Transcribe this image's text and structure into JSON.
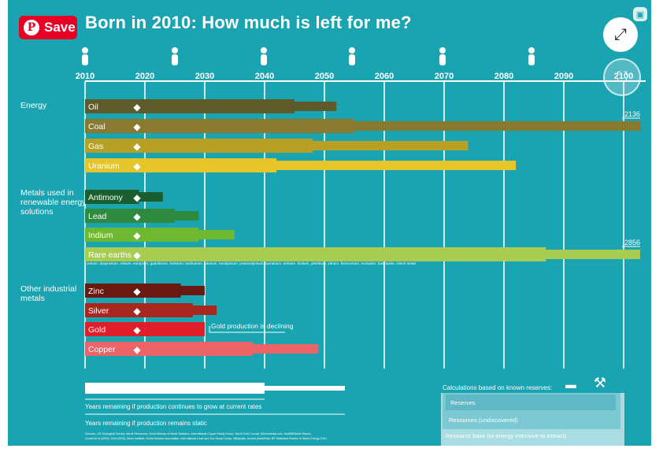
{
  "header": {
    "title": "Born in 2010: How much is left for me?",
    "save_label": "Save"
  },
  "chart_data": {
    "type": "bar",
    "title": "Born in 2010: How much is left for me?",
    "x_unit": "year",
    "xlim": [
      2010,
      2103
    ],
    "x_ticks": [
      "2010",
      "2020",
      "2030",
      "2040",
      "2050",
      "2060",
      "2070",
      "2080",
      "2090",
      "2100"
    ],
    "groups": [
      {
        "name": "Energy",
        "items": [
          {
            "label": "Oil",
            "icon": "fuel-pump-icon",
            "color": "#5e5a2a",
            "growth": 2045,
            "static": 2052
          },
          {
            "label": "Coal",
            "icon": "lightning-icon",
            "color": "#8a7a30",
            "growth": 2055,
            "static": 2136,
            "static_label": "2136"
          },
          {
            "label": "Gas",
            "icon": "lightning-icon",
            "color": "#b8a024",
            "growth": 2048,
            "static": 2074
          },
          {
            "label": "Uranium",
            "icon": "radiation-icon",
            "color": "#e5c52a",
            "growth": 2042,
            "static": 2082
          }
        ]
      },
      {
        "name": "Metals used in renewable energy solutions",
        "items": [
          {
            "label": "Antimony",
            "icon": "battery-icon",
            "color": "#1a5e2e",
            "growth": 2019,
            "static": 2023
          },
          {
            "label": "Lead",
            "icon": "car-icon",
            "color": "#2e8a3e",
            "growth": 2025,
            "static": 2029
          },
          {
            "label": "Indium",
            "icon": "solar-panel-icon",
            "color": "#6fb832",
            "growth": 2029,
            "static": 2035
          },
          {
            "label": "Rare earths",
            "icon": "wind-turbine-icon",
            "color": "#a8cc52",
            "growth": 2087,
            "static": 2856,
            "static_label": "2856"
          }
        ]
      },
      {
        "name": "Other industrial metals",
        "items": [
          {
            "label": "Zinc",
            "icon": "saxophone-icon",
            "color": "#6b1a12",
            "growth": 2026,
            "static": 2030
          },
          {
            "label": "Silver",
            "icon": "ring-icon",
            "color": "#a82820",
            "growth": 2028,
            "static": 2032
          },
          {
            "label": "Gold",
            "icon": "phone-icon",
            "color": "#e01e2a",
            "growth": 2030,
            "static": 2030
          },
          {
            "label": "Copper",
            "icon": "faucet-icon",
            "color": "#ec6468",
            "growth": 2038,
            "static": 2049
          }
        ]
      }
    ],
    "rare_earths_list": "cerium, dysprosium, erbium, europium, gadolinium, holmium, lanthanum, lutetium, neodymium, praseodymium, samarium, terbium, thulium, ytterbium, yttrium, ferrocerium, monazite, bastnasite, misch metal",
    "annotations": {
      "gold": "Gold production is declining"
    },
    "legend": {
      "growth": "Years remaining if production continues to grow at current rates",
      "static": "Years remaining if production remains static",
      "calc_title": "Calculations based on known reserves:",
      "reserves": "Reserves",
      "resources": "Resources (undiscovered)",
      "resource_base": "Resource base (to energy intensive to extract)"
    },
    "sources": [
      "Sources: US Geological Survey, Adroit Resources, World Bureau of Metal Statistics, International Copper Study Group, World Gold Council, Minesmetals.com, BusBill/Nickel Report,",
      "Cordell et al (2009), Smil (2003), Silver Institute, World Nuclear Association, International Lead and Zinc Study Group, Wikipedia, Source (lead/Zink): BP Statistical Review of World Energy 2010."
    ]
  },
  "colors": {
    "background": "#1aa3b0",
    "grid": "#ffffff",
    "save": "#e60023"
  }
}
